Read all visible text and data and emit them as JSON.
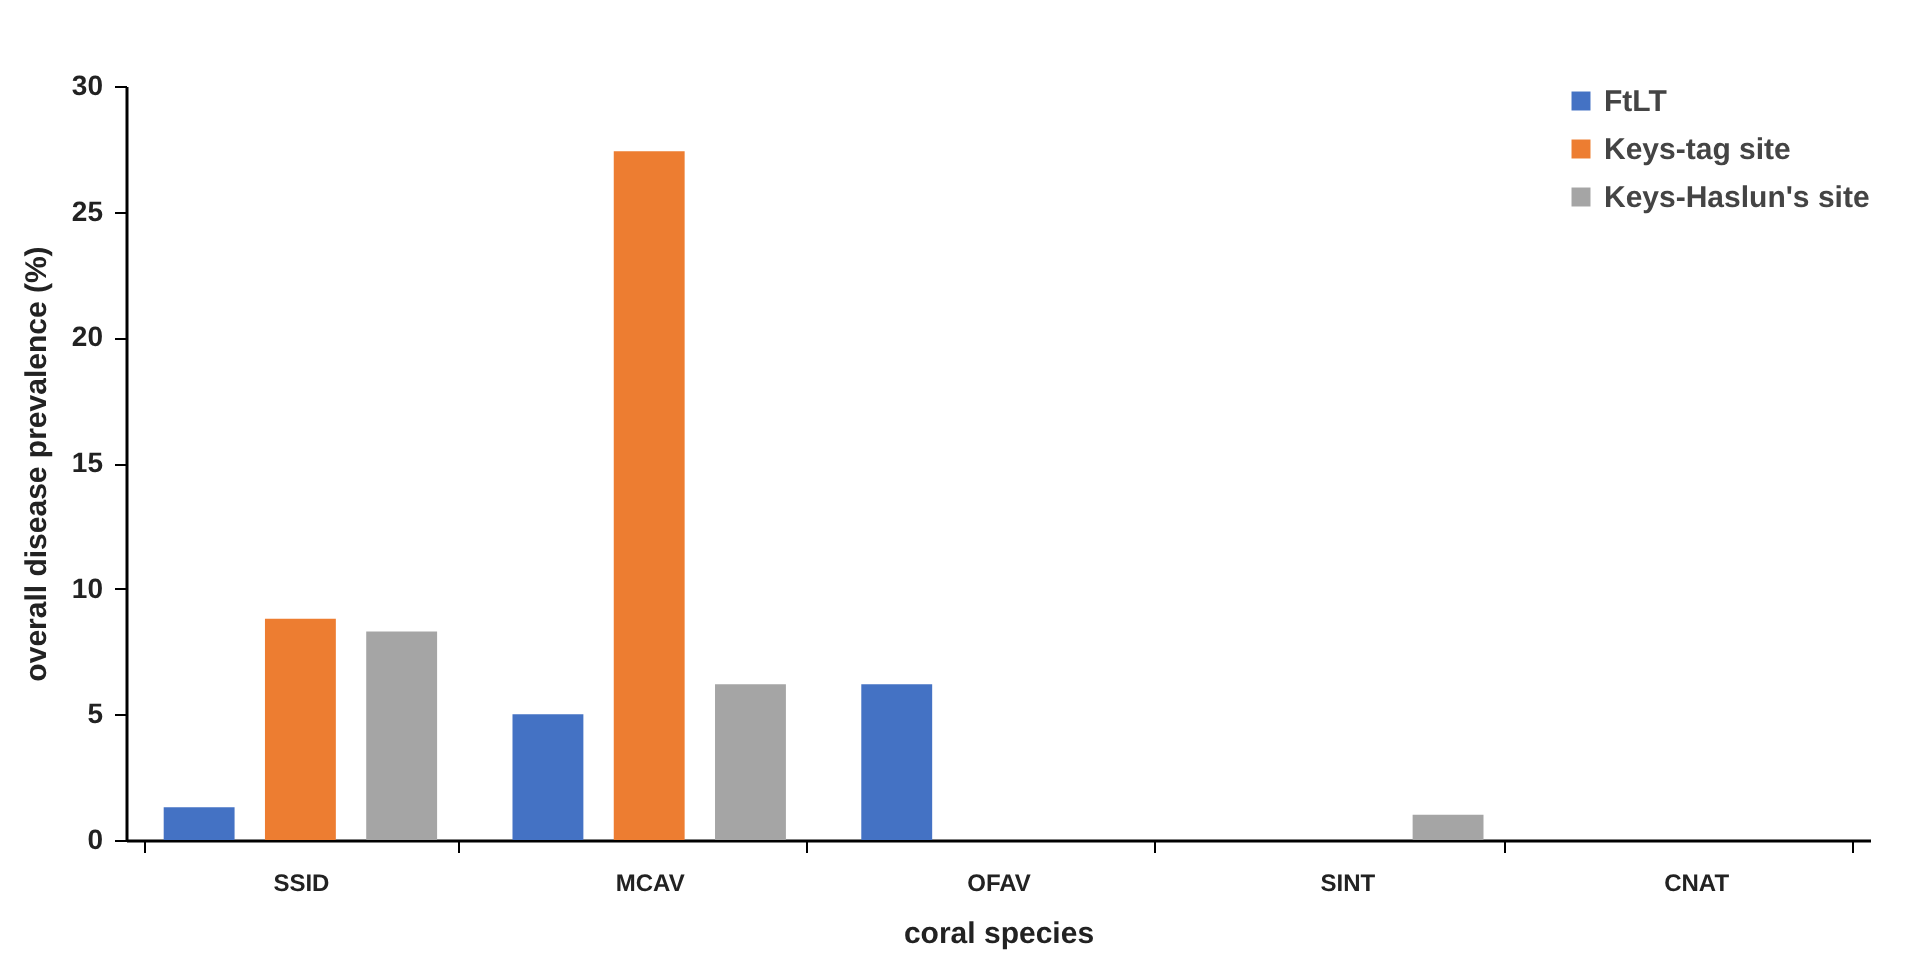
{
  "chart_data": {
    "type": "bar",
    "xlabel": "coral species",
    "ylabel": "overall disease prevalence (%)",
    "categories": [
      "SSID",
      "MCAV",
      "OFAV",
      "SINT",
      "CNAT"
    ],
    "series": [
      {
        "name": "FtLT",
        "color": "#4472c4",
        "values": [
          1.3,
          5.0,
          6.2,
          0,
          0
        ]
      },
      {
        "name": "Keys-tag site",
        "color": "#ed7d31",
        "values": [
          8.8,
          27.4,
          0,
          0,
          0
        ]
      },
      {
        "name": "Keys-Haslun's site",
        "color": "#a5a5a5",
        "values": [
          8.3,
          6.2,
          0,
          1.0,
          0
        ]
      }
    ],
    "ylim": [
      0,
      30
    ],
    "yticks": [
      0,
      5,
      10,
      15,
      20,
      25,
      30
    ],
    "grid": false,
    "legend": "top right"
  }
}
